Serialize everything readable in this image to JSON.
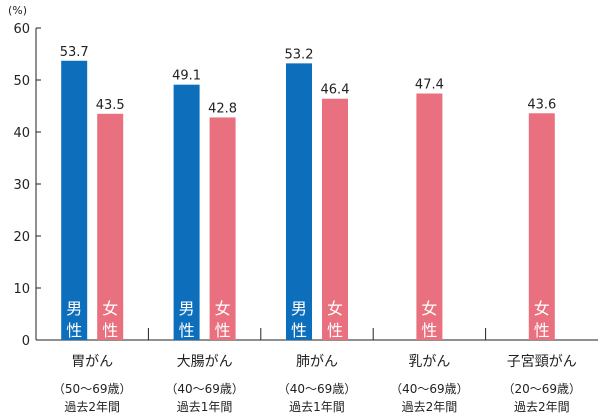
{
  "chart_data": {
    "type": "bar",
    "y_unit_label": "(%)",
    "ylim": [
      0,
      60
    ],
    "y_ticks": [
      "0",
      "10",
      "20",
      "30",
      "40",
      "50",
      "60"
    ],
    "grid": false,
    "series": [
      {
        "name": "男性",
        "color": "#0d6ebc",
        "label_chars": [
          "男",
          "性"
        ]
      },
      {
        "name": "女性",
        "color": "#e8707f",
        "label_chars": [
          "女",
          "性"
        ]
      }
    ],
    "groups": [
      {
        "name": "胃がん",
        "age": "（50〜69歳）",
        "period": "過去2年間",
        "bars": [
          {
            "series": 0,
            "value": 53.7,
            "label": "53.7"
          },
          {
            "series": 1,
            "value": 43.5,
            "label": "43.5"
          }
        ]
      },
      {
        "name": "大腸がん",
        "age": "（40〜69歳）",
        "period": "過去1年間",
        "bars": [
          {
            "series": 0,
            "value": 49.1,
            "label": "49.1"
          },
          {
            "series": 1,
            "value": 42.8,
            "label": "42.8"
          }
        ]
      },
      {
        "name": "肺がん",
        "age": "（40〜69歳）",
        "period": "過去1年間",
        "bars": [
          {
            "series": 0,
            "value": 53.2,
            "label": "53.2"
          },
          {
            "series": 1,
            "value": 46.4,
            "label": "46.4"
          }
        ]
      },
      {
        "name": "乳がん",
        "age": "（40〜69歳）",
        "period": "過去2年間",
        "bars": [
          {
            "series": 1,
            "value": 47.4,
            "label": "47.4"
          }
        ]
      },
      {
        "name": "子宮頸がん",
        "age": "（20〜69歳）",
        "period": "過去2年間",
        "bars": [
          {
            "series": 1,
            "value": 43.6,
            "label": "43.6"
          }
        ]
      }
    ]
  }
}
